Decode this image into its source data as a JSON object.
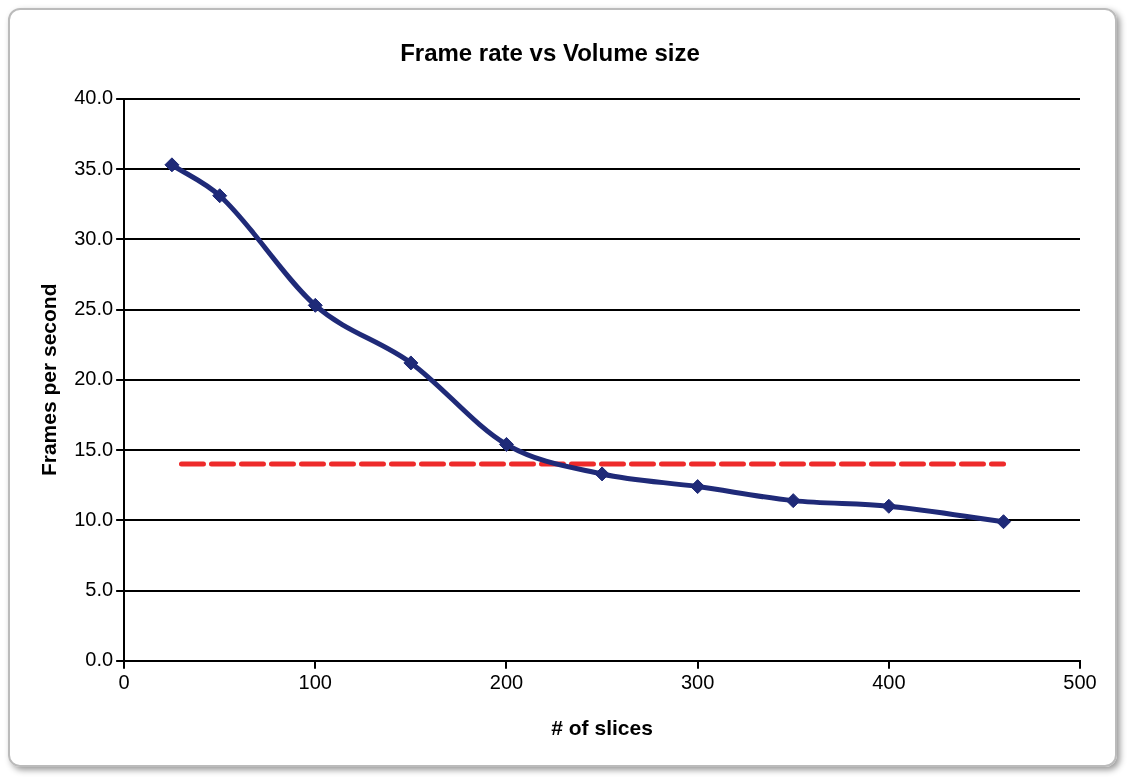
{
  "chart_data": {
    "type": "line",
    "title": "Frame rate vs Volume size",
    "xlabel": "# of slices",
    "ylabel": "Frames per second",
    "x": [
      25,
      50,
      100,
      150,
      200,
      250,
      300,
      350,
      400,
      460
    ],
    "series": [
      {
        "color": "#1f2a78",
        "values": [
          35.3,
          33.1,
          25.3,
          21.2,
          15.4,
          13.3,
          12.4,
          11.4,
          11.0,
          9.9
        ],
        "marker": "diamond",
        "line_style": "solid"
      },
      {
        "type": "line",
        "color": "#ee2b2b",
        "x": [
          30,
          460
        ],
        "values": [
          14.0,
          14.0
        ],
        "marker": "none",
        "line_style": "dashed"
      }
    ],
    "xlim": [
      0,
      500
    ],
    "xticks": [
      0,
      100,
      200,
      300,
      400,
      500
    ],
    "ylim": [
      0,
      40
    ],
    "yticks": [
      {
        "value": 0,
        "label": "0.0"
      },
      {
        "value": 5,
        "label": "5.0"
      },
      {
        "value": 10,
        "label": "10.0"
      },
      {
        "value": 15,
        "label": "15.0"
      },
      {
        "value": 20,
        "label": "20.0"
      },
      {
        "value": 25,
        "label": "25.0"
      },
      {
        "value": 30,
        "label": "30.0"
      },
      {
        "value": 35,
        "label": "35.0"
      },
      {
        "value": 40,
        "label": "40.0"
      }
    ],
    "grid": "y",
    "legend": false
  }
}
